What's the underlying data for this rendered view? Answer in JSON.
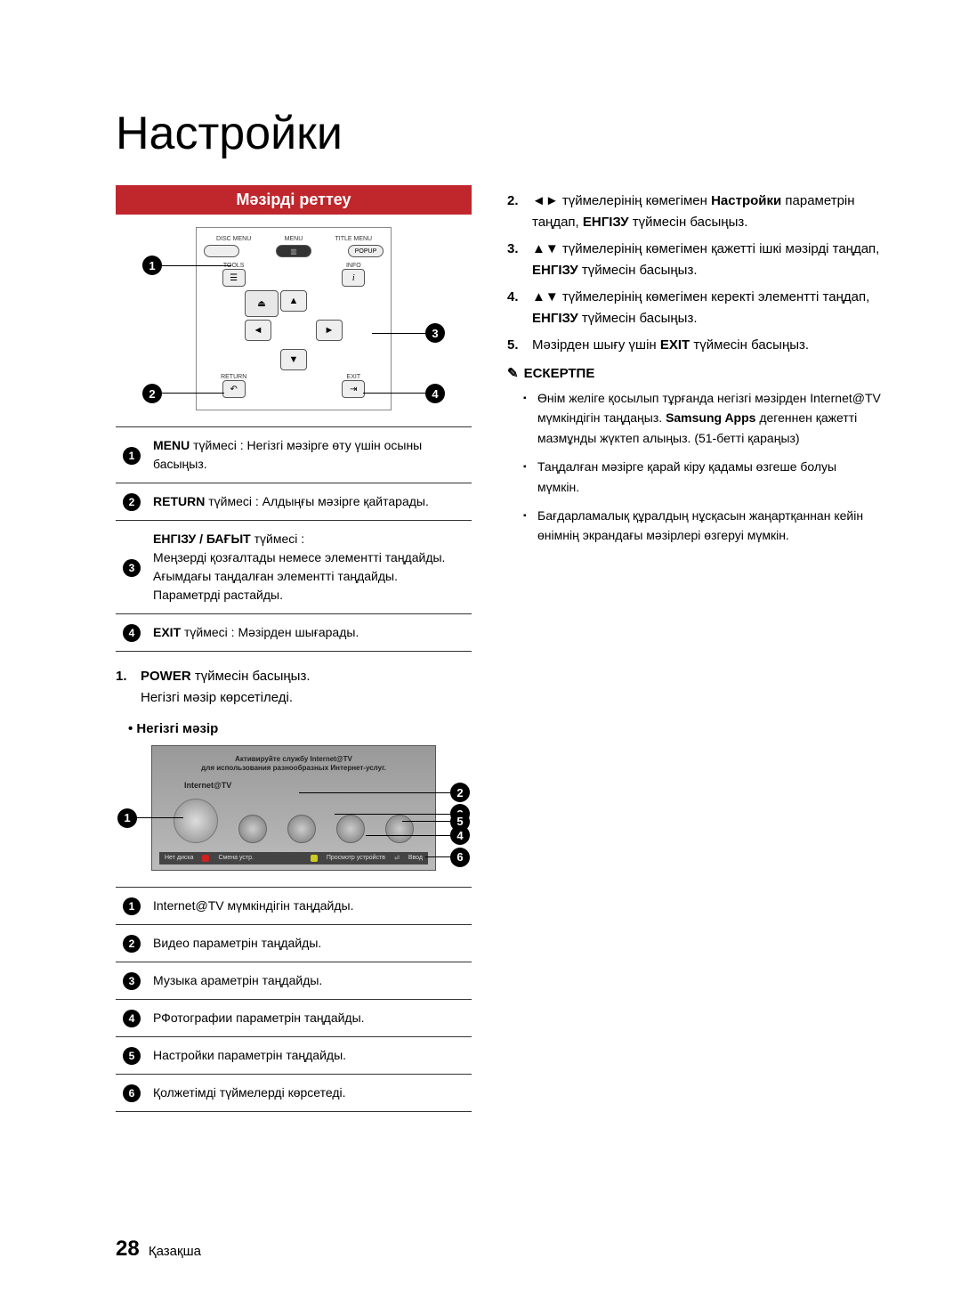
{
  "page_title": "Настройки",
  "section_banner": "Мәзірді реттеу",
  "remote": {
    "row1_labels": [
      "DISC MENU",
      "MENU",
      "TITLE MENU"
    ],
    "row1_right_btn": "POPUP",
    "row2_left_label": "TOOLS",
    "row2_right_label": "INFO",
    "tools_icon": "☰",
    "info_icon": "i",
    "center_icon": "⏏",
    "row4_left_label": "RETURN",
    "row4_right_label": "EXIT",
    "return_icon": "↶",
    "exit_icon": "⇥",
    "callouts": {
      "c1": "1",
      "c2": "2",
      "c3": "3",
      "c4": "4"
    }
  },
  "remote_legend": [
    {
      "n": "1",
      "html": "<span class='bold'>MENU</span> түймесі : Негізгі мәзірге өту үшін осыны басыңыз."
    },
    {
      "n": "2",
      "html": "<span class='bold'>RETURN</span> түймесі : Алдыңғы мәзірге қайтарады."
    },
    {
      "n": "3",
      "html": "<span class='bold'>ЕНГІЗУ / БАҒЫТ</span> түймесі :<br>Меңзерді қозғалтады немесе элементті таңдайды. Ағымдағы таңдалған элементті таңдайды. Параметрді растайды."
    },
    {
      "n": "4",
      "html": "<span class='bold'>EXIT</span> түймесі : Мәзірден шығарады."
    }
  ],
  "step_left": {
    "n": "1.",
    "text_bold": "POWER",
    "text_rest": " түймесін басыңыз.",
    "line2": "Негізгі мәзір көрсетіледі."
  },
  "subhead_left": "• Негізгі мәзір",
  "tv": {
    "top1": "Активируйте службу Internet@TV",
    "top2": "для использования разнообразных Интернет-услуг.",
    "label": "Internet@TV",
    "bottom_left": "Нет диска",
    "bottom_a": "Смена устр.",
    "bottom_d": "Просмотр устройств",
    "bottom_enter": "Ввод",
    "callouts": {
      "c1": "1",
      "c2": "2",
      "c3": "3",
      "c4": "4",
      "c5": "5",
      "c6": "6"
    }
  },
  "tv_legend": [
    {
      "n": "1",
      "text": "Internet@TV мүмкіндігін таңдайды."
    },
    {
      "n": "2",
      "text": "Видео параметрін таңдайды."
    },
    {
      "n": "3",
      "text": "Музыка араметрін таңдайды."
    },
    {
      "n": "4",
      "text": "РФотографии параметрін таңдайды."
    },
    {
      "n": "5",
      "text": "Настройки параметрін таңдайды."
    },
    {
      "n": "6",
      "text": "Қолжетімді түймелерді көрсетеді."
    }
  ],
  "right_steps": [
    {
      "n": "2.",
      "html": "◄► түймелерінің көмегімен <span class='bold'>Настройки</span> параметрін таңдап, <span class='bold'>ЕНГІЗУ</span> түймесін басыңыз."
    },
    {
      "n": "3.",
      "html": "▲▼ түймелерінің көмегімен қажетті ішкі мәзірді таңдап, <span class='bold'>ЕНГІЗУ</span> түймесін басыңыз."
    },
    {
      "n": "4.",
      "html": "▲▼ түймелерінің көмегімен керекті элементті таңдап, <span class='bold'>ЕНГІЗУ</span> түймесін басыңыз."
    },
    {
      "n": "5.",
      "html": "Мәзірден шығу үшін <span class='bold'>EXIT</span> түймесін басыңыз."
    }
  ],
  "note_head": "ЕСКЕРТПЕ",
  "notes": [
    "Өнім желіге қосылып тұрғанда негізгі мәзірден Internet@TV мүмкіндігін таңдаңыз. <span class='bold'>Samsung Apps</span> дегеннен қажетті мазмұнды жүктеп алыңыз. (51-бетті қараңыз)",
    "Таңдалған мәзірге қарай кіру қадамы өзгеше болуы мүмкін.",
    "Бағдарламалық құралдың нұсқасын жаңартқаннан кейін өнімнің экрандағы мәзірлері өзгеруі мүмкін."
  ],
  "footer": {
    "page": "28",
    "lang": "Қазақша"
  }
}
